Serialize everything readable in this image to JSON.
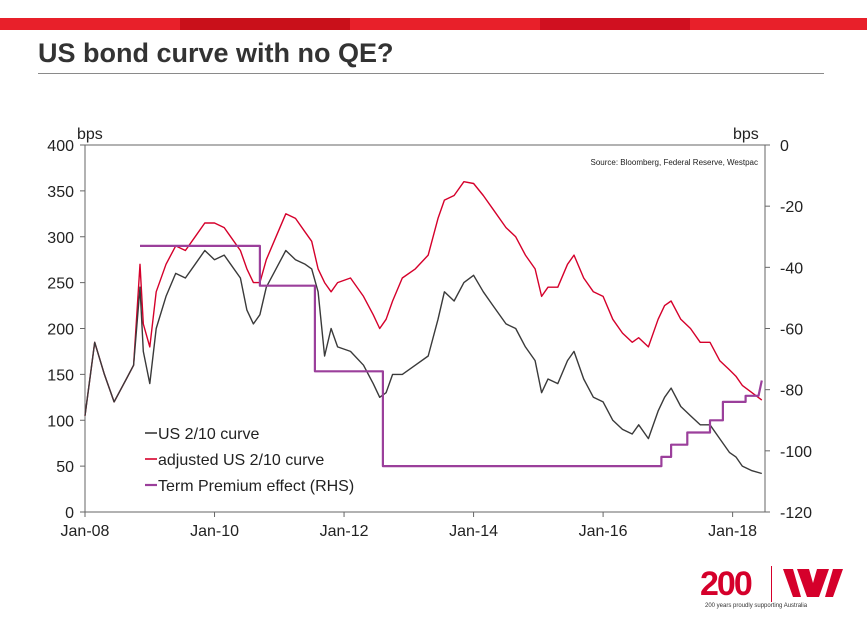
{
  "brand": {
    "accent": "#d5002b",
    "bar_colors": [
      "#e8202a",
      "#c9101a",
      "#e8202a",
      "#d01020",
      "#e8202a"
    ]
  },
  "slide": {
    "title": "US bond curve with no QE?"
  },
  "logo": {
    "mark": "200",
    "tagline": "200 years proudly supporting Australia",
    "icon": "westpac-w-logo-icon"
  },
  "chart_data": {
    "type": "line",
    "title": "US bond curve with no QE?",
    "source": "Source: Bloomberg, Federal Reserve, Westpac",
    "ylabel_left": "bps",
    "ylabel_right": "bps",
    "x_ticks": [
      "Jan-08",
      "Jan-10",
      "Jan-12",
      "Jan-14",
      "Jan-16",
      "Jan-18"
    ],
    "x_tick_years": [
      2008,
      2010,
      2012,
      2014,
      2016,
      2018
    ],
    "xlim": [
      2008.0,
      2018.5
    ],
    "ylim_left": [
      0,
      400
    ],
    "yticks_left": [
      0,
      50,
      100,
      150,
      200,
      250,
      300,
      350,
      400
    ],
    "ylim_right": [
      -120,
      0
    ],
    "yticks_right": [
      -120,
      -100,
      -80,
      -60,
      -40,
      -20,
      0
    ],
    "legend_position": "bottom-left",
    "series": [
      {
        "name": "US 2/10 curve",
        "axis": "left",
        "color": "#3a3a3a",
        "points": [
          [
            2008.0,
            105
          ],
          [
            2008.15,
            185
          ],
          [
            2008.3,
            150
          ],
          [
            2008.45,
            120
          ],
          [
            2008.6,
            140
          ],
          [
            2008.75,
            160
          ],
          [
            2008.85,
            245
          ],
          [
            2008.9,
            175
          ],
          [
            2009.0,
            140
          ],
          [
            2009.1,
            200
          ],
          [
            2009.25,
            235
          ],
          [
            2009.4,
            260
          ],
          [
            2009.55,
            255
          ],
          [
            2009.7,
            270
          ],
          [
            2009.85,
            285
          ],
          [
            2010.0,
            275
          ],
          [
            2010.15,
            280
          ],
          [
            2010.25,
            270
          ],
          [
            2010.4,
            255
          ],
          [
            2010.5,
            220
          ],
          [
            2010.6,
            205
          ],
          [
            2010.7,
            215
          ],
          [
            2010.8,
            245
          ],
          [
            2010.95,
            265
          ],
          [
            2011.1,
            285
          ],
          [
            2011.25,
            275
          ],
          [
            2011.4,
            270
          ],
          [
            2011.5,
            265
          ],
          [
            2011.6,
            240
          ],
          [
            2011.7,
            170
          ],
          [
            2011.8,
            200
          ],
          [
            2011.9,
            180
          ],
          [
            2012.1,
            175
          ],
          [
            2012.3,
            160
          ],
          [
            2012.45,
            140
          ],
          [
            2012.55,
            125
          ],
          [
            2012.65,
            130
          ],
          [
            2012.75,
            150
          ],
          [
            2012.9,
            150
          ],
          [
            2013.1,
            160
          ],
          [
            2013.3,
            170
          ],
          [
            2013.45,
            210
          ],
          [
            2013.55,
            240
          ],
          [
            2013.7,
            230
          ],
          [
            2013.85,
            250
          ],
          [
            2014.0,
            258
          ],
          [
            2014.15,
            240
          ],
          [
            2014.3,
            225
          ],
          [
            2014.5,
            205
          ],
          [
            2014.65,
            200
          ],
          [
            2014.8,
            180
          ],
          [
            2014.95,
            165
          ],
          [
            2015.05,
            130
          ],
          [
            2015.15,
            145
          ],
          [
            2015.3,
            140
          ],
          [
            2015.45,
            165
          ],
          [
            2015.55,
            175
          ],
          [
            2015.7,
            145
          ],
          [
            2015.85,
            125
          ],
          [
            2016.0,
            120
          ],
          [
            2016.15,
            100
          ],
          [
            2016.3,
            90
          ],
          [
            2016.45,
            85
          ],
          [
            2016.55,
            95
          ],
          [
            2016.7,
            80
          ],
          [
            2016.85,
            110
          ],
          [
            2016.95,
            125
          ],
          [
            2017.05,
            135
          ],
          [
            2017.2,
            115
          ],
          [
            2017.35,
            105
          ],
          [
            2017.5,
            95
          ],
          [
            2017.65,
            95
          ],
          [
            2017.8,
            80
          ],
          [
            2017.95,
            65
          ],
          [
            2018.05,
            60
          ],
          [
            2018.15,
            50
          ],
          [
            2018.3,
            45
          ],
          [
            2018.45,
            42
          ]
        ]
      },
      {
        "name": "adjusted US 2/10 curve",
        "axis": "left",
        "color": "#d5002b",
        "points": [
          [
            2008.0,
            105
          ],
          [
            2008.15,
            185
          ],
          [
            2008.3,
            150
          ],
          [
            2008.45,
            120
          ],
          [
            2008.6,
            140
          ],
          [
            2008.75,
            160
          ],
          [
            2008.85,
            270
          ],
          [
            2008.9,
            205
          ],
          [
            2009.0,
            180
          ],
          [
            2009.1,
            240
          ],
          [
            2009.25,
            270
          ],
          [
            2009.4,
            290
          ],
          [
            2009.55,
            285
          ],
          [
            2009.7,
            300
          ],
          [
            2009.85,
            315
          ],
          [
            2010.0,
            315
          ],
          [
            2010.15,
            310
          ],
          [
            2010.25,
            300
          ],
          [
            2010.4,
            285
          ],
          [
            2010.5,
            265
          ],
          [
            2010.6,
            250
          ],
          [
            2010.7,
            250
          ],
          [
            2010.8,
            275
          ],
          [
            2010.95,
            300
          ],
          [
            2011.1,
            325
          ],
          [
            2011.25,
            320
          ],
          [
            2011.4,
            305
          ],
          [
            2011.5,
            295
          ],
          [
            2011.6,
            265
          ],
          [
            2011.7,
            250
          ],
          [
            2011.8,
            240
          ],
          [
            2011.9,
            250
          ],
          [
            2012.1,
            255
          ],
          [
            2012.3,
            235
          ],
          [
            2012.45,
            215
          ],
          [
            2012.55,
            200
          ],
          [
            2012.65,
            210
          ],
          [
            2012.75,
            230
          ],
          [
            2012.9,
            255
          ],
          [
            2013.1,
            265
          ],
          [
            2013.3,
            280
          ],
          [
            2013.45,
            320
          ],
          [
            2013.55,
            340
          ],
          [
            2013.7,
            345
          ],
          [
            2013.85,
            360
          ],
          [
            2014.0,
            358
          ],
          [
            2014.15,
            345
          ],
          [
            2014.3,
            330
          ],
          [
            2014.5,
            310
          ],
          [
            2014.65,
            300
          ],
          [
            2014.8,
            280
          ],
          [
            2014.95,
            265
          ],
          [
            2015.05,
            235
          ],
          [
            2015.15,
            245
          ],
          [
            2015.3,
            245
          ],
          [
            2015.45,
            270
          ],
          [
            2015.55,
            280
          ],
          [
            2015.7,
            255
          ],
          [
            2015.85,
            240
          ],
          [
            2016.0,
            235
          ],
          [
            2016.15,
            210
          ],
          [
            2016.3,
            195
          ],
          [
            2016.45,
            185
          ],
          [
            2016.55,
            190
          ],
          [
            2016.7,
            180
          ],
          [
            2016.85,
            210
          ],
          [
            2016.95,
            225
          ],
          [
            2017.05,
            230
          ],
          [
            2017.2,
            210
          ],
          [
            2017.35,
            200
          ],
          [
            2017.5,
            185
          ],
          [
            2017.65,
            185
          ],
          [
            2017.8,
            165
          ],
          [
            2017.95,
            155
          ],
          [
            2018.05,
            148
          ],
          [
            2018.15,
            138
          ],
          [
            2018.3,
            130
          ],
          [
            2018.45,
            122
          ]
        ]
      },
      {
        "name": "Term Premium effect (RHS)",
        "axis": "right",
        "color": "#9b3f9b",
        "step": true,
        "points": [
          [
            2008.85,
            -33
          ],
          [
            2010.7,
            -33
          ],
          [
            2010.7,
            -46
          ],
          [
            2011.55,
            -46
          ],
          [
            2011.55,
            -74
          ],
          [
            2012.6,
            -74
          ],
          [
            2012.6,
            -105
          ],
          [
            2016.9,
            -105
          ],
          [
            2016.9,
            -102
          ],
          [
            2017.05,
            -102
          ],
          [
            2017.05,
            -98
          ],
          [
            2017.3,
            -98
          ],
          [
            2017.3,
            -94
          ],
          [
            2017.65,
            -94
          ],
          [
            2017.65,
            -90
          ],
          [
            2017.85,
            -90
          ],
          [
            2017.85,
            -84
          ],
          [
            2018.2,
            -84
          ],
          [
            2018.2,
            -82
          ],
          [
            2018.4,
            -82
          ],
          [
            2018.45,
            -77
          ]
        ]
      }
    ]
  }
}
